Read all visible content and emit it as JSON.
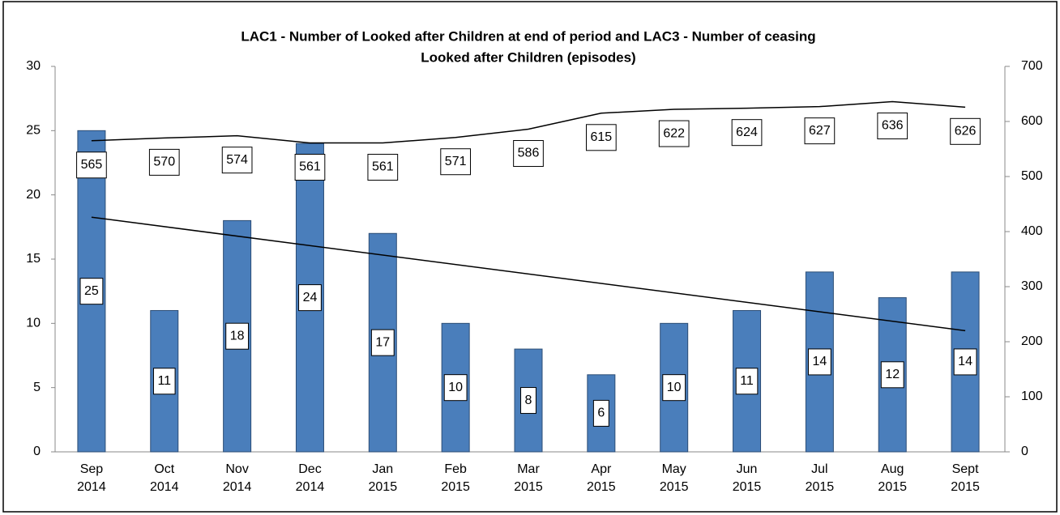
{
  "chart_data": {
    "type": "bar",
    "title": [
      "LAC1 - Number of Looked after Children at end of period and LAC3 - Number of ceasing",
      "Looked after Children (episodes)"
    ],
    "categories": [
      [
        "Sep",
        "2014"
      ],
      [
        "Oct",
        "2014"
      ],
      [
        "Nov",
        "2014"
      ],
      [
        "Dec",
        "2014"
      ],
      [
        "Jan",
        "2015"
      ],
      [
        "Feb",
        "2015"
      ],
      [
        "Mar",
        "2015"
      ],
      [
        "Apr",
        "2015"
      ],
      [
        "May",
        "2015"
      ],
      [
        "Jun",
        "2015"
      ],
      [
        "Jul",
        "2015"
      ],
      [
        "Aug",
        "2015"
      ],
      [
        "Sept",
        "2015"
      ]
    ],
    "series": [
      {
        "type": "bar",
        "color": "#4a7ebb",
        "values": [
          25,
          11,
          18,
          24,
          17,
          10,
          8,
          6,
          10,
          11,
          14,
          12,
          14
        ],
        "trendline": true
      },
      {
        "type": "line",
        "axis": "y2",
        "color": "#000000",
        "values": [
          565,
          570,
          574,
          561,
          561,
          571,
          586,
          615,
          622,
          624,
          627,
          636,
          626
        ]
      }
    ],
    "ylim": [
      0,
      30
    ],
    "yticks": [
      0,
      5,
      10,
      15,
      20,
      25,
      30
    ],
    "y2lim": [
      0,
      700
    ],
    "y2ticks": [
      0,
      100,
      200,
      300,
      400,
      500,
      600,
      700
    ],
    "grid": false
  }
}
